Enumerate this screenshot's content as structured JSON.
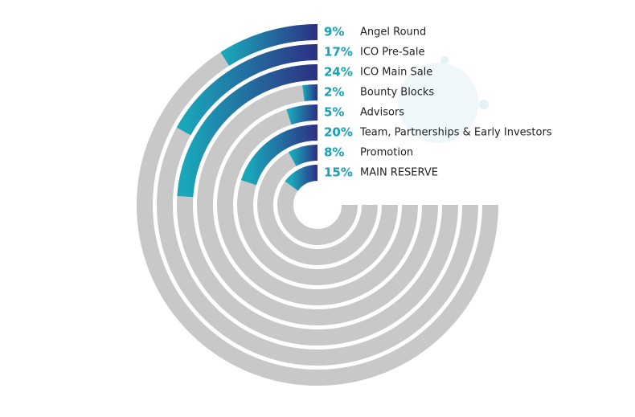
{
  "chart_data": {
    "type": "radial_bar",
    "categories": [
      "Angel Round",
      "ICO Pre-Sale",
      "ICO Main Sale",
      "Bounty Blocks",
      "Advisors",
      "Team, Partnerships & Early Investors",
      "Promotion",
      "MAIN RESERVE"
    ],
    "values": [
      9,
      17,
      24,
      2,
      5,
      20,
      8,
      15
    ],
    "value_labels": [
      "9%",
      "17%",
      "24%",
      "2%",
      "5%",
      "20%",
      "8%",
      "15%"
    ],
    "color_start": "#1aa7ba",
    "color_end": "#2d2f83",
    "track_color": "#c8c8c8"
  }
}
